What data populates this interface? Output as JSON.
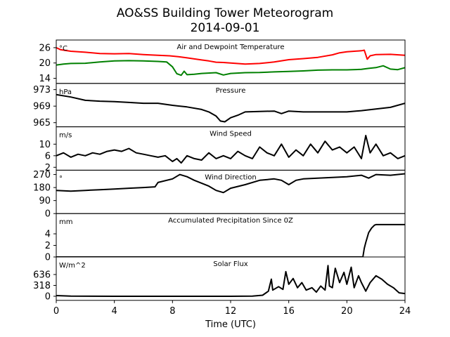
{
  "figure": {
    "title_line1": "AO&SS Building Tower Meteorogram",
    "title_line2": "2014-09-01",
    "xlabel": "Time (UTC)"
  },
  "chart_data": [
    {
      "id": "temp",
      "type": "line",
      "title": "Air and Dewpoint Temperature",
      "unit": "°C",
      "ylim": [
        12,
        29
      ],
      "yticks": [
        14,
        20,
        26
      ],
      "series": [
        {
          "color": "#ff0000",
          "points": [
            [
              0,
              26
            ],
            [
              0.3,
              25.2
            ],
            [
              1,
              24.6
            ],
            [
              2,
              24.2
            ],
            [
              3,
              23.7
            ],
            [
              4,
              23.6
            ],
            [
              5,
              23.7
            ],
            [
              6,
              23.3
            ],
            [
              7,
              23.0
            ],
            [
              7.8,
              22.8
            ],
            [
              8.5,
              22.4
            ],
            [
              9,
              22.0
            ],
            [
              9.5,
              21.6
            ],
            [
              10,
              21.2
            ],
            [
              10.5,
              20.8
            ],
            [
              11,
              20.3
            ],
            [
              11.5,
              20.2
            ],
            [
              12,
              20.0
            ],
            [
              13,
              19.6
            ],
            [
              14,
              19.8
            ],
            [
              15,
              20.4
            ],
            [
              16,
              21.3
            ],
            [
              17,
              21.7
            ],
            [
              18,
              22.2
            ],
            [
              19,
              23.2
            ],
            [
              19.5,
              24.0
            ],
            [
              20,
              24.4
            ],
            [
              20.5,
              24.6
            ],
            [
              21,
              24.8
            ],
            [
              21.2,
              25.0
            ],
            [
              21.4,
              21.5
            ],
            [
              21.6,
              22.8
            ],
            [
              22,
              23.3
            ],
            [
              23,
              23.4
            ],
            [
              24,
              23.0
            ]
          ]
        },
        {
          "color": "#008000",
          "points": [
            [
              0,
              19.2
            ],
            [
              0.5,
              19.6
            ],
            [
              1,
              19.8
            ],
            [
              2,
              19.9
            ],
            [
              3,
              20.4
            ],
            [
              4,
              20.8
            ],
            [
              5,
              20.9
            ],
            [
              6,
              20.8
            ],
            [
              7,
              20.6
            ],
            [
              7.6,
              20.4
            ],
            [
              8,
              18.5
            ],
            [
              8.3,
              15.8
            ],
            [
              8.6,
              15.2
            ],
            [
              8.8,
              16.8
            ],
            [
              9,
              15.4
            ],
            [
              9.5,
              15.6
            ],
            [
              10,
              15.9
            ],
            [
              11,
              16.2
            ],
            [
              11.5,
              15.3
            ],
            [
              12,
              15.9
            ],
            [
              13,
              16.2
            ],
            [
              14,
              16.3
            ],
            [
              15,
              16.5
            ],
            [
              16,
              16.7
            ],
            [
              17,
              16.9
            ],
            [
              18,
              17.2
            ],
            [
              19,
              17.3
            ],
            [
              20,
              17.3
            ],
            [
              21,
              17.5
            ],
            [
              21.5,
              17.9
            ],
            [
              22,
              18.2
            ],
            [
              22.5,
              18.9
            ],
            [
              23,
              17.6
            ],
            [
              23.5,
              17.4
            ],
            [
              24,
              18.2
            ]
          ]
        }
      ]
    },
    {
      "id": "pres",
      "type": "line",
      "title": "Pressure",
      "unit": "hPa",
      "ylim": [
        964,
        974.5
      ],
      "yticks": [
        965,
        969,
        973
      ],
      "series": [
        {
          "color": "#000000",
          "points": [
            [
              0,
              971.8
            ],
            [
              1,
              971.2
            ],
            [
              2,
              970.4
            ],
            [
              3,
              970.2
            ],
            [
              4,
              970.1
            ],
            [
              5,
              969.9
            ],
            [
              6,
              969.7
            ],
            [
              7,
              969.7
            ],
            [
              8,
              969.2
            ],
            [
              9,
              968.8
            ],
            [
              10,
              968.2
            ],
            [
              10.5,
              967.6
            ],
            [
              11,
              966.6
            ],
            [
              11.3,
              965.4
            ],
            [
              11.6,
              965.2
            ],
            [
              12,
              966.2
            ],
            [
              12.5,
              966.8
            ],
            [
              13,
              967.6
            ],
            [
              14,
              967.7
            ],
            [
              15,
              967.8
            ],
            [
              15.5,
              967.2
            ],
            [
              16,
              967.8
            ],
            [
              17,
              967.6
            ],
            [
              18,
              967.6
            ],
            [
              19,
              967.6
            ],
            [
              20,
              967.6
            ],
            [
              21,
              967.9
            ],
            [
              22,
              968.3
            ],
            [
              23,
              968.7
            ],
            [
              24,
              969.7
            ]
          ]
        }
      ]
    },
    {
      "id": "wspd",
      "type": "line",
      "title": "Wind Speed",
      "unit": "m/s",
      "ylim": [
        1,
        16
      ],
      "yticks": [
        2,
        6,
        10
      ],
      "series": [
        {
          "color": "#000000",
          "points": [
            [
              0,
              6
            ],
            [
              0.5,
              7
            ],
            [
              1,
              5.5
            ],
            [
              1.5,
              6.5
            ],
            [
              2,
              6
            ],
            [
              2.5,
              7
            ],
            [
              3,
              6.5
            ],
            [
              3.5,
              7.5
            ],
            [
              4,
              8
            ],
            [
              4.5,
              7.5
            ],
            [
              5,
              8.5
            ],
            [
              5.5,
              7
            ],
            [
              6,
              6.5
            ],
            [
              6.5,
              6
            ],
            [
              7,
              5.5
            ],
            [
              7.5,
              6
            ],
            [
              8,
              4
            ],
            [
              8.3,
              5
            ],
            [
              8.6,
              3.5
            ],
            [
              9,
              6
            ],
            [
              9.5,
              5
            ],
            [
              10,
              4.5
            ],
            [
              10.5,
              7
            ],
            [
              11,
              5
            ],
            [
              11.5,
              6
            ],
            [
              12,
              5
            ],
            [
              12.5,
              7.5
            ],
            [
              13,
              6
            ],
            [
              13.5,
              5
            ],
            [
              14,
              9
            ],
            [
              14.5,
              7
            ],
            [
              15,
              6
            ],
            [
              15.5,
              10
            ],
            [
              16,
              5.5
            ],
            [
              16.5,
              8
            ],
            [
              17,
              6
            ],
            [
              17.5,
              10
            ],
            [
              18,
              7
            ],
            [
              18.5,
              11
            ],
            [
              19,
              8
            ],
            [
              19.5,
              9
            ],
            [
              20,
              7
            ],
            [
              20.5,
              9
            ],
            [
              21,
              5
            ],
            [
              21.3,
              13
            ],
            [
              21.6,
              7
            ],
            [
              22,
              10
            ],
            [
              22.5,
              6
            ],
            [
              23,
              7
            ],
            [
              23.5,
              5
            ],
            [
              24,
              6
            ]
          ]
        }
      ]
    },
    {
      "id": "wdir",
      "type": "line",
      "title": "Wind Direction",
      "unit": "°",
      "ylim": [
        0,
        300
      ],
      "yticks": [
        0,
        90,
        180,
        270
      ],
      "series": [
        {
          "color": "#000000",
          "points": [
            [
              0,
              160
            ],
            [
              1,
              155
            ],
            [
              2,
              160
            ],
            [
              3,
              165
            ],
            [
              4,
              170
            ],
            [
              5,
              175
            ],
            [
              6,
              180
            ],
            [
              6.8,
              185
            ],
            [
              7,
              215
            ],
            [
              8,
              240
            ],
            [
              8.5,
              270
            ],
            [
              9,
              255
            ],
            [
              9.5,
              230
            ],
            [
              10,
              210
            ],
            [
              10.5,
              190
            ],
            [
              11,
              160
            ],
            [
              11.5,
              145
            ],
            [
              12,
              175
            ],
            [
              13,
              200
            ],
            [
              14,
              230
            ],
            [
              15,
              240
            ],
            [
              15.5,
              230
            ],
            [
              16,
              200
            ],
            [
              16.5,
              230
            ],
            [
              17,
              240
            ],
            [
              18,
              245
            ],
            [
              19,
              250
            ],
            [
              20,
              255
            ],
            [
              21,
              265
            ],
            [
              21.5,
              245
            ],
            [
              22,
              270
            ],
            [
              23,
              265
            ],
            [
              24,
              275
            ]
          ]
        }
      ]
    },
    {
      "id": "precip",
      "type": "line",
      "title": "Accumulated Precipitation Since 0Z",
      "unit": "mm",
      "ylim": [
        0,
        7.5
      ],
      "yticks": [
        0,
        2,
        4
      ],
      "series": [
        {
          "color": "#000000",
          "points": [
            [
              0,
              0
            ],
            [
              21.1,
              0
            ],
            [
              21.2,
              1.5
            ],
            [
              21.3,
              2.5
            ],
            [
              21.5,
              4.2
            ],
            [
              21.7,
              5
            ],
            [
              21.9,
              5.5
            ],
            [
              22,
              5.6
            ],
            [
              24,
              5.6
            ]
          ]
        }
      ]
    },
    {
      "id": "solar",
      "type": "line",
      "title": "Solar Flux",
      "unit": "W/m^2",
      "ylim": [
        -120,
        1150
      ],
      "yticks": [
        0,
        318,
        636
      ],
      "series": [
        {
          "color": "#000000",
          "points": [
            [
              0,
              20
            ],
            [
              1,
              5
            ],
            [
              4,
              0
            ],
            [
              8,
              0
            ],
            [
              12,
              0
            ],
            [
              13.5,
              5
            ],
            [
              14.2,
              30
            ],
            [
              14.6,
              150
            ],
            [
              14.8,
              500
            ],
            [
              14.9,
              180
            ],
            [
              15.3,
              280
            ],
            [
              15.6,
              200
            ],
            [
              15.8,
              720
            ],
            [
              16,
              350
            ],
            [
              16.3,
              520
            ],
            [
              16.6,
              250
            ],
            [
              16.9,
              400
            ],
            [
              17.2,
              180
            ],
            [
              17.6,
              250
            ],
            [
              17.9,
              120
            ],
            [
              18.2,
              300
            ],
            [
              18.5,
              180
            ],
            [
              18.7,
              900
            ],
            [
              18.8,
              300
            ],
            [
              19,
              250
            ],
            [
              19.2,
              820
            ],
            [
              19.5,
              400
            ],
            [
              19.8,
              700
            ],
            [
              20,
              350
            ],
            [
              20.3,
              850
            ],
            [
              20.5,
              250
            ],
            [
              20.8,
              600
            ],
            [
              21,
              400
            ],
            [
              21.3,
              150
            ],
            [
              21.6,
              400
            ],
            [
              22,
              600
            ],
            [
              22.4,
              500
            ],
            [
              22.8,
              350
            ],
            [
              23.2,
              250
            ],
            [
              23.6,
              100
            ],
            [
              24,
              80
            ]
          ]
        }
      ]
    }
  ],
  "xaxis": {
    "xlim": [
      0,
      24
    ],
    "ticks": [
      0,
      4,
      8,
      12,
      16,
      20,
      24
    ]
  }
}
